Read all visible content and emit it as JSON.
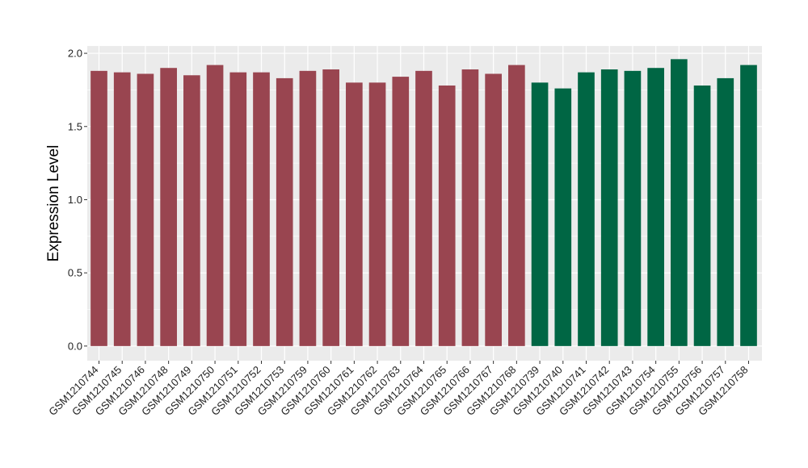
{
  "chart_data": {
    "type": "bar",
    "title": "",
    "xlabel": "",
    "ylabel": "Expression Level",
    "ylim": [
      -0.1,
      2.05
    ],
    "yticks": [
      0.0,
      0.5,
      1.0,
      1.5,
      2.0
    ],
    "ytick_labels": [
      "0.0",
      "0.5",
      "1.0",
      "1.5",
      "2.0"
    ],
    "grid": true,
    "legend": "none",
    "colors": {
      "panel_background": "#ebebeb",
      "grid": "#ffffff",
      "group_a": "#994550",
      "group_b": "#006644"
    },
    "categories": [
      "GSM1210744",
      "GSM1210745",
      "GSM1210746",
      "GSM1210748",
      "GSM1210749",
      "GSM1210750",
      "GSM1210751",
      "GSM1210752",
      "GSM1210753",
      "GSM1210759",
      "GSM1210760",
      "GSM1210761",
      "GSM1210762",
      "GSM1210763",
      "GSM1210764",
      "GSM1210765",
      "GSM1210766",
      "GSM1210767",
      "GSM1210768",
      "GSM1210739",
      "GSM1210740",
      "GSM1210741",
      "GSM1210742",
      "GSM1210743",
      "GSM1210754",
      "GSM1210755",
      "GSM1210756",
      "GSM1210757",
      "GSM1210758"
    ],
    "values": [
      1.88,
      1.87,
      1.86,
      1.9,
      1.85,
      1.92,
      1.87,
      1.87,
      1.83,
      1.88,
      1.89,
      1.8,
      1.8,
      1.84,
      1.88,
      1.78,
      1.89,
      1.86,
      1.92,
      1.8,
      1.76,
      1.87,
      1.89,
      1.88,
      1.9,
      1.96,
      1.78,
      1.83,
      1.92
    ],
    "groups": [
      "a",
      "a",
      "a",
      "a",
      "a",
      "a",
      "a",
      "a",
      "a",
      "a",
      "a",
      "a",
      "a",
      "a",
      "a",
      "a",
      "a",
      "a",
      "a",
      "b",
      "b",
      "b",
      "b",
      "b",
      "b",
      "b",
      "b",
      "b",
      "b"
    ]
  }
}
